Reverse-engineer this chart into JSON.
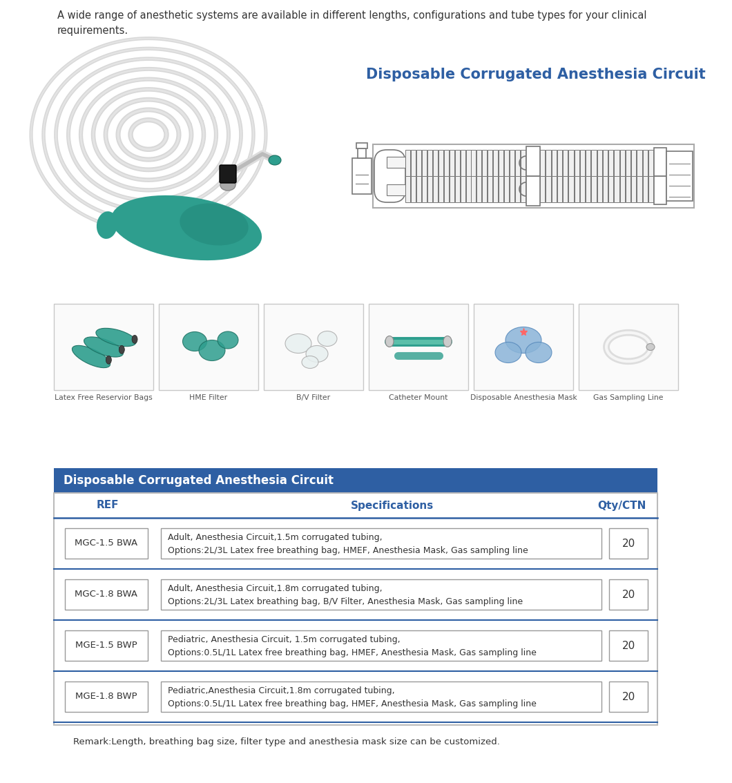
{
  "background_color": "#ffffff",
  "intro_text": "A wide range of anesthetic systems are available in different lengths, configurations and tube types for your clinical\nrequirements.",
  "section_title": "Disposable Corrugated Anesthesia Circuit",
  "section_title_color": "#2E5FA3",
  "header_bg_color": "#2E5FA3",
  "header_text_color": "#ffffff",
  "col_header_color": "#2E5FA3",
  "table_header": [
    "REF",
    "Specifications",
    "Qty/CTN"
  ],
  "table_rows": [
    {
      "ref": "MGC-1.5 BWA",
      "spec_line1": "Adult, Anesthesia Circuit,1.5m corrugated tubing,",
      "spec_line2": "Options:2L/3L Latex free breathing bag, HMEF, Anesthesia Mask, Gas sampling line",
      "qty": "20"
    },
    {
      "ref": "MGC-1.8 BWA",
      "spec_line1": "Adult, Anesthesia Circuit,1.8m corrugated tubing,",
      "spec_line2": "Options:2L/3L Latex breathing bag, B/V Filter, Anesthesia Mask, Gas sampling line",
      "qty": "20"
    },
    {
      "ref": "MGE-1.5 BWP",
      "spec_line1": "Pediatric, Anesthesia Circuit, 1.5m corrugated tubing,",
      "spec_line2": "Options:0.5L/1L Latex free breathing bag, HMEF, Anesthesia Mask, Gas sampling line",
      "qty": "20"
    },
    {
      "ref": "MGE-1.8 BWP",
      "spec_line1": "Pediatric,Anesthesia Circuit,1.8m corrugated tubing,",
      "spec_line2": "Options:0.5L/1L Latex free breathing bag, HMEF, Anesthesia Mask, Gas sampling line",
      "qty": "20"
    }
  ],
  "remark": "Remark:Length, breathing bag size, filter type and anesthesia mask size can be customized.",
  "accessory_labels": [
    "Latex Free Reservior Bags",
    "HME Filter",
    "B/V Filter",
    "Catheter Mount",
    "Disposable Anesthesia Mask",
    "Gas Sampling Line"
  ],
  "divider_color": "#2E5FA3",
  "cell_border_color": "#888888",
  "text_color": "#333333",
  "label_color": "#555555",
  "diag_col": "#777777",
  "teal_color": "#2e9e8e",
  "blue_light": "#8ab4d8"
}
